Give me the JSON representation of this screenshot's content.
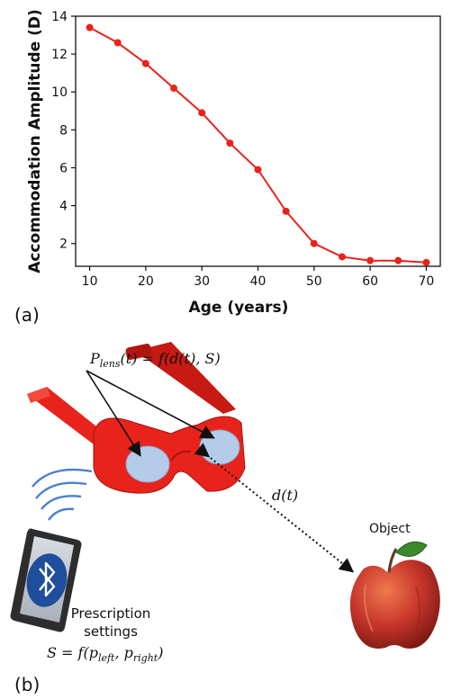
{
  "chart_data": {
    "type": "line",
    "xlabel": "Age (years)",
    "ylabel": "Accommodation Amplitude (D)",
    "xlim": [
      7.5,
      72.5
    ],
    "ylim": [
      0.8,
      14.0
    ],
    "xticks": [
      10,
      20,
      30,
      40,
      50,
      60,
      70
    ],
    "yticks": [
      2,
      4,
      6,
      8,
      10,
      12,
      14
    ],
    "grid": false,
    "series": [
      {
        "color": "#e8231c",
        "x": [
          10,
          15,
          20,
          25,
          30,
          35,
          40,
          45,
          50,
          55,
          60,
          65,
          70
        ],
        "y": [
          13.4,
          12.6,
          11.5,
          10.2,
          8.9,
          7.3,
          5.9,
          3.7,
          2.0,
          1.3,
          1.1,
          1.1,
          1.0
        ]
      }
    ]
  },
  "labels": {
    "panel_a": "(a)",
    "panel_b": "(b)",
    "lens_formula": "P_lens(t) = f(d(t), S)",
    "lens_formula_parts": {
      "p": "P",
      "sub": "lens",
      "rest": "(t) = f(d(t), S)"
    },
    "distance": "d(t)",
    "object": "Object",
    "prescription_line1": "Prescription",
    "prescription_line2": "settings",
    "settings_formula": "S = f(p_left, p_right)",
    "settings_parts": {
      "a": "S = f(p",
      "sub1": "left",
      "b": ", p",
      "sub2": "right",
      "c": ")"
    }
  },
  "colors": {
    "glasses": "#e8231c",
    "lens": "#b4cbea",
    "phone_screen": "#1f4e9c",
    "apple": "#c8362b",
    "bluetooth_waves": "#4a7fd0"
  },
  "icons": [
    "bluetooth-icon",
    "wifi-waves-icon",
    "apple-icon",
    "glasses-icon",
    "phone-icon"
  ]
}
